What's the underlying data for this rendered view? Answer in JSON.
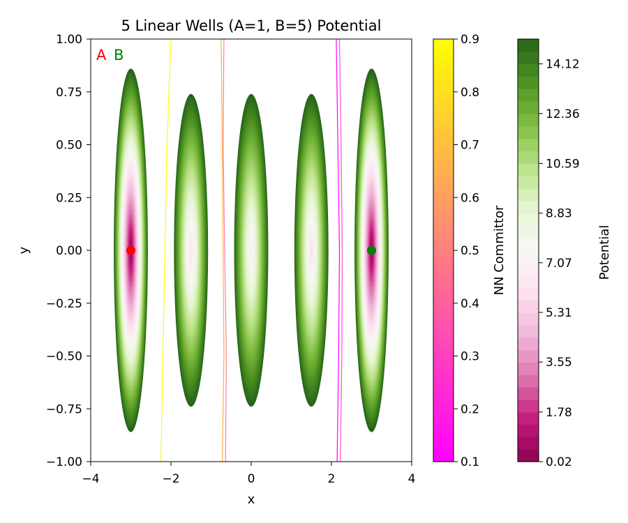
{
  "chart_data": {
    "type": "contour",
    "title": "5 Linear Wells (A=1, B=5) Potential",
    "xlabel": "x",
    "ylabel": "y",
    "xlim": [
      -4,
      4
    ],
    "ylim": [
      -1,
      1
    ],
    "xticks": [
      "−4",
      "−2",
      "0",
      "2",
      "4"
    ],
    "xtick_values": [
      -4,
      -2,
      0,
      2,
      4
    ],
    "yticks": [
      "−1.00",
      "−0.75",
      "−0.50",
      "−0.25",
      "0.00",
      "0.25",
      "0.50",
      "0.75",
      "1.00"
    ],
    "ytick_values": [
      -1,
      -0.75,
      -0.5,
      -0.25,
      0,
      0.25,
      0.5,
      0.75,
      1
    ],
    "grid": false,
    "potential": {
      "wells": [
        {
          "x": -3.0,
          "depth": 1.0
        },
        {
          "x": -1.5,
          "depth": 0.6
        },
        {
          "x": 0.0,
          "depth": 0.55
        },
        {
          "x": 1.5,
          "depth": 0.6
        },
        {
          "x": 3.0,
          "depth": 1.0
        }
      ],
      "well_half_width_x": 0.85,
      "well_half_height_y": [
        0.86,
        0.74,
        0.74,
        0.74,
        0.86
      ],
      "min": 0.02,
      "max": 15.0
    },
    "committor_contours": [
      {
        "level": 0.1,
        "color": "#ff00ff",
        "x": [
          2.12,
          2.16,
          2.2,
          2.18,
          2.14
        ]
      },
      {
        "level": 0.3,
        "color": "#ff4fd8",
        "x": [
          2.2,
          2.24,
          2.27,
          2.26,
          2.22
        ]
      },
      {
        "level": 0.5,
        "color": "#ff7fa0",
        "x": [
          -0.68,
          -0.7,
          -0.66,
          -0.62,
          -0.64
        ]
      },
      {
        "level": 0.7,
        "color": "#ffb040",
        "x": [
          -0.75,
          -0.72,
          -0.7,
          -0.68,
          -0.72
        ]
      },
      {
        "level": 0.9,
        "color": "#ffff00",
        "x": [
          -2.0,
          -2.1,
          -2.15,
          -2.2,
          -2.25
        ]
      }
    ],
    "points": [
      {
        "name": "A",
        "x": -3.0,
        "y": 0.0,
        "color": "#ff0000"
      },
      {
        "name": "B",
        "x": 3.0,
        "y": 0.0,
        "color": "#008000"
      }
    ],
    "labels": [
      {
        "text": "A",
        "color": "#ff0000"
      },
      {
        "text": "B",
        "color": "#008000"
      }
    ],
    "colorbars": [
      {
        "label": "NN Committor",
        "ticks": [
          "0.1",
          "0.2",
          "0.3",
          "0.4",
          "0.5",
          "0.6",
          "0.7",
          "0.8",
          "0.9"
        ],
        "tick_values": [
          0.1,
          0.2,
          0.3,
          0.4,
          0.5,
          0.6,
          0.7,
          0.8,
          0.9
        ],
        "range": [
          0.1,
          0.9
        ],
        "colormap": "spring"
      },
      {
        "label": "Potential",
        "ticks": [
          "0.02",
          "1.78",
          "3.55",
          "5.31",
          "7.07",
          "8.83",
          "10.59",
          "12.36",
          "14.12"
        ],
        "tick_values": [
          0.02,
          1.78,
          3.55,
          5.31,
          7.07,
          8.83,
          10.59,
          12.36,
          14.12
        ],
        "range": [
          0.02,
          15.0
        ],
        "colormap": "PiYG"
      }
    ]
  }
}
